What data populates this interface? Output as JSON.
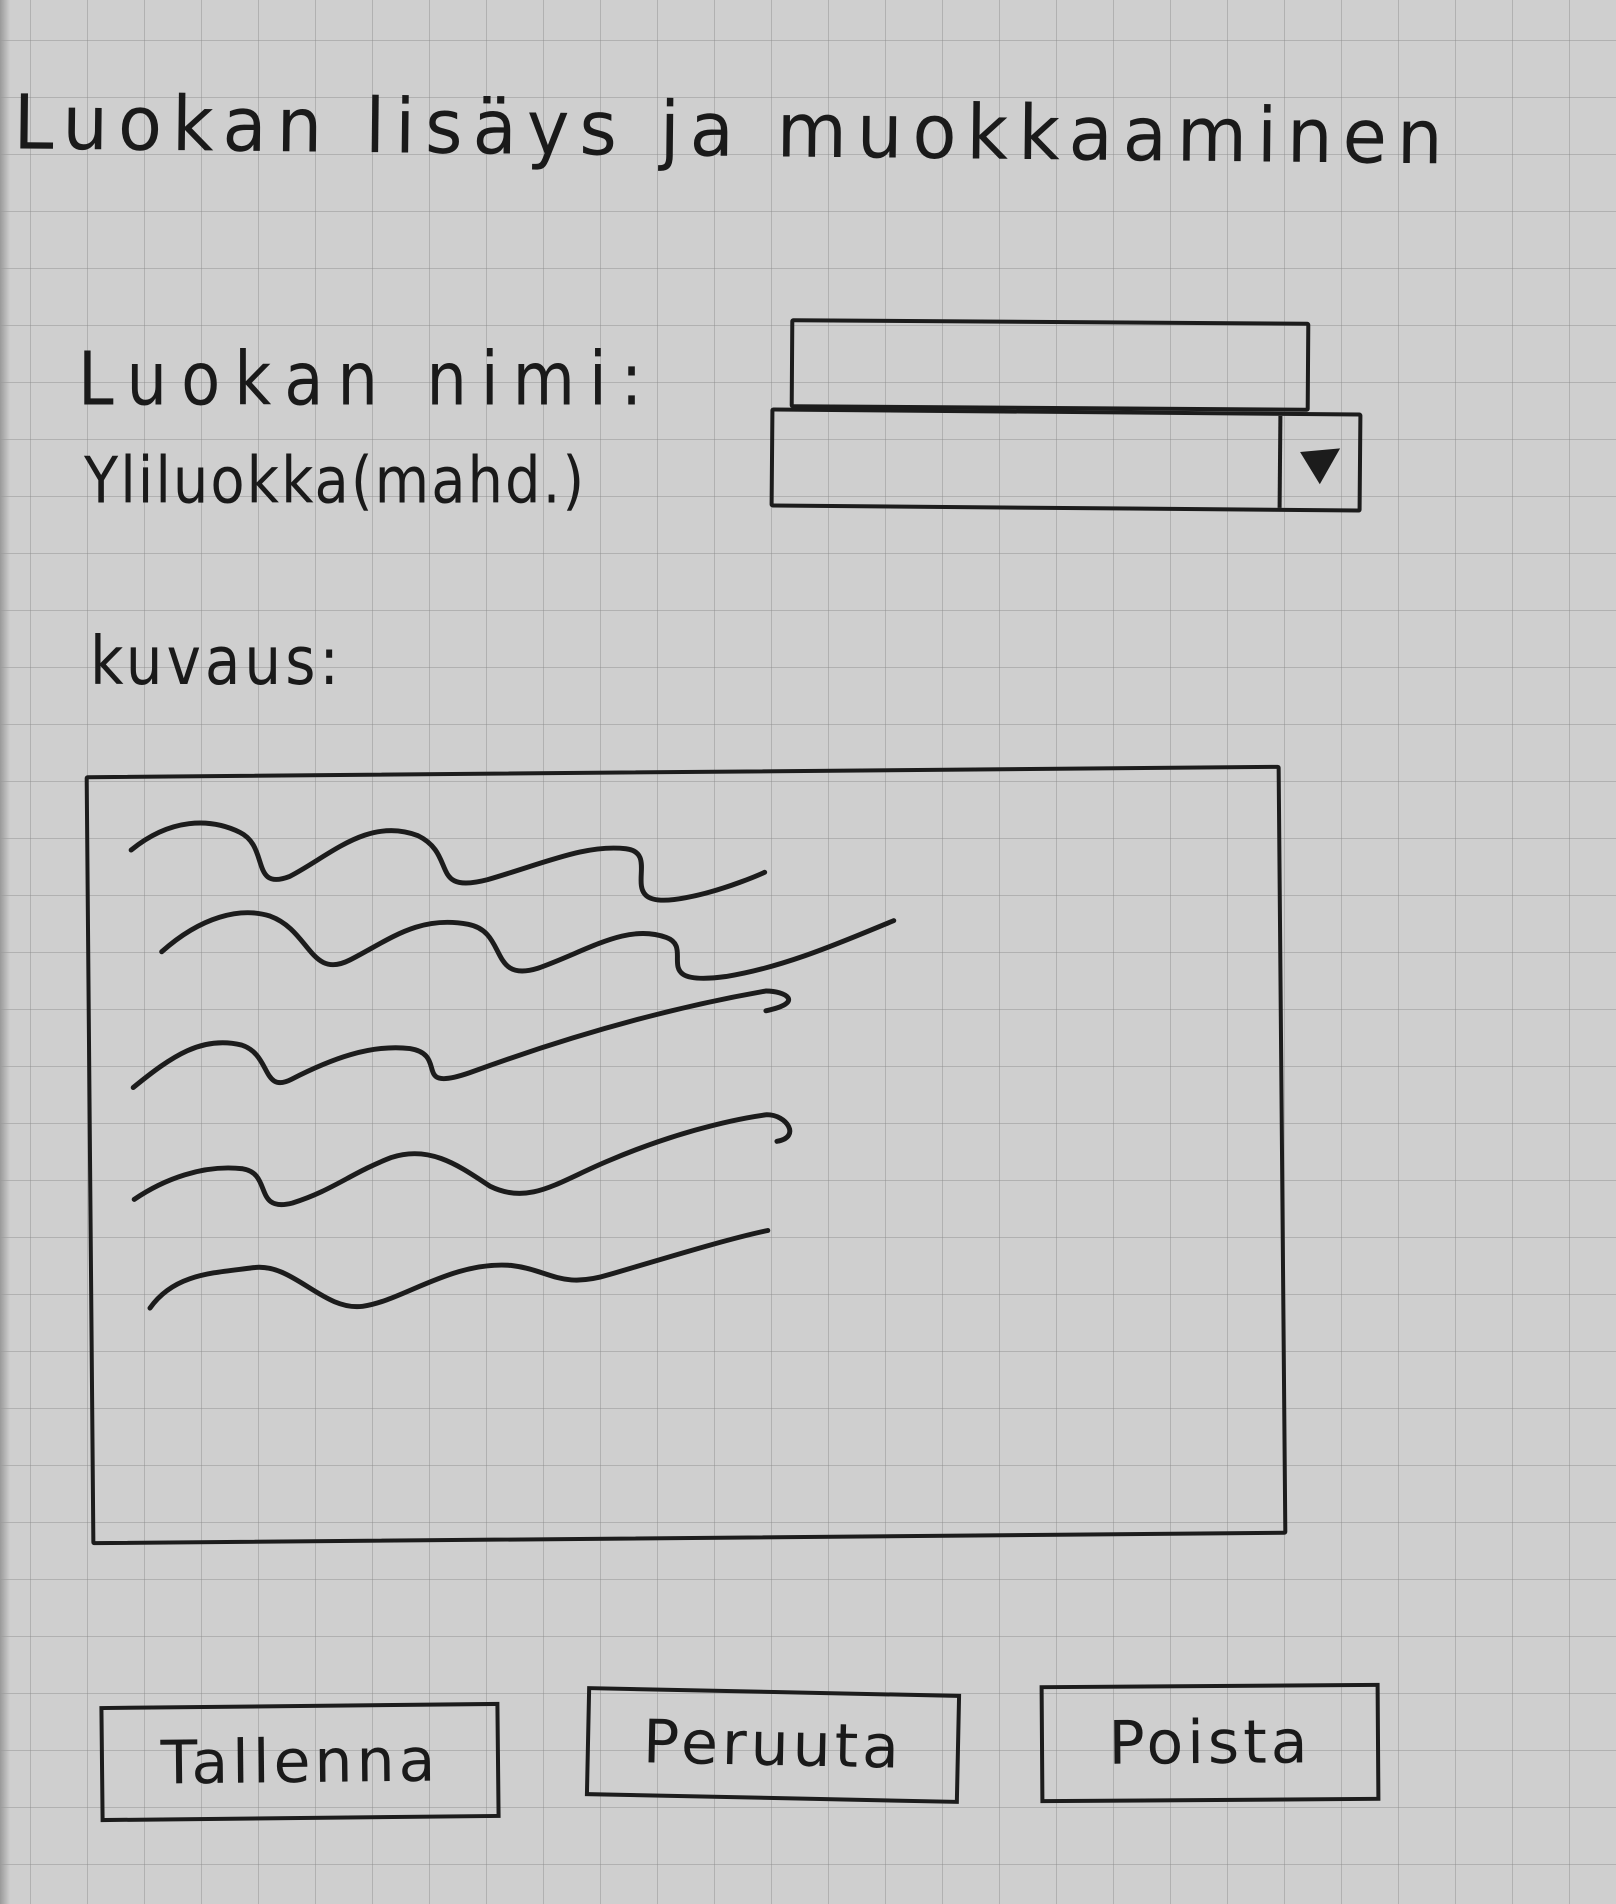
{
  "title": "Luokan lisäys ja muokkaaminen",
  "form": {
    "name_label": "Luokan nimi:",
    "name_value": "",
    "parent_label": "Yliluokka(mahd.)",
    "parent_value": "",
    "description_label": "kuvaus:"
  },
  "buttons": {
    "save": "Tallenna",
    "cancel": "Peruuta",
    "delete": "Poista"
  },
  "icons": {
    "dropdown": "dropdown-arrow-icon"
  }
}
